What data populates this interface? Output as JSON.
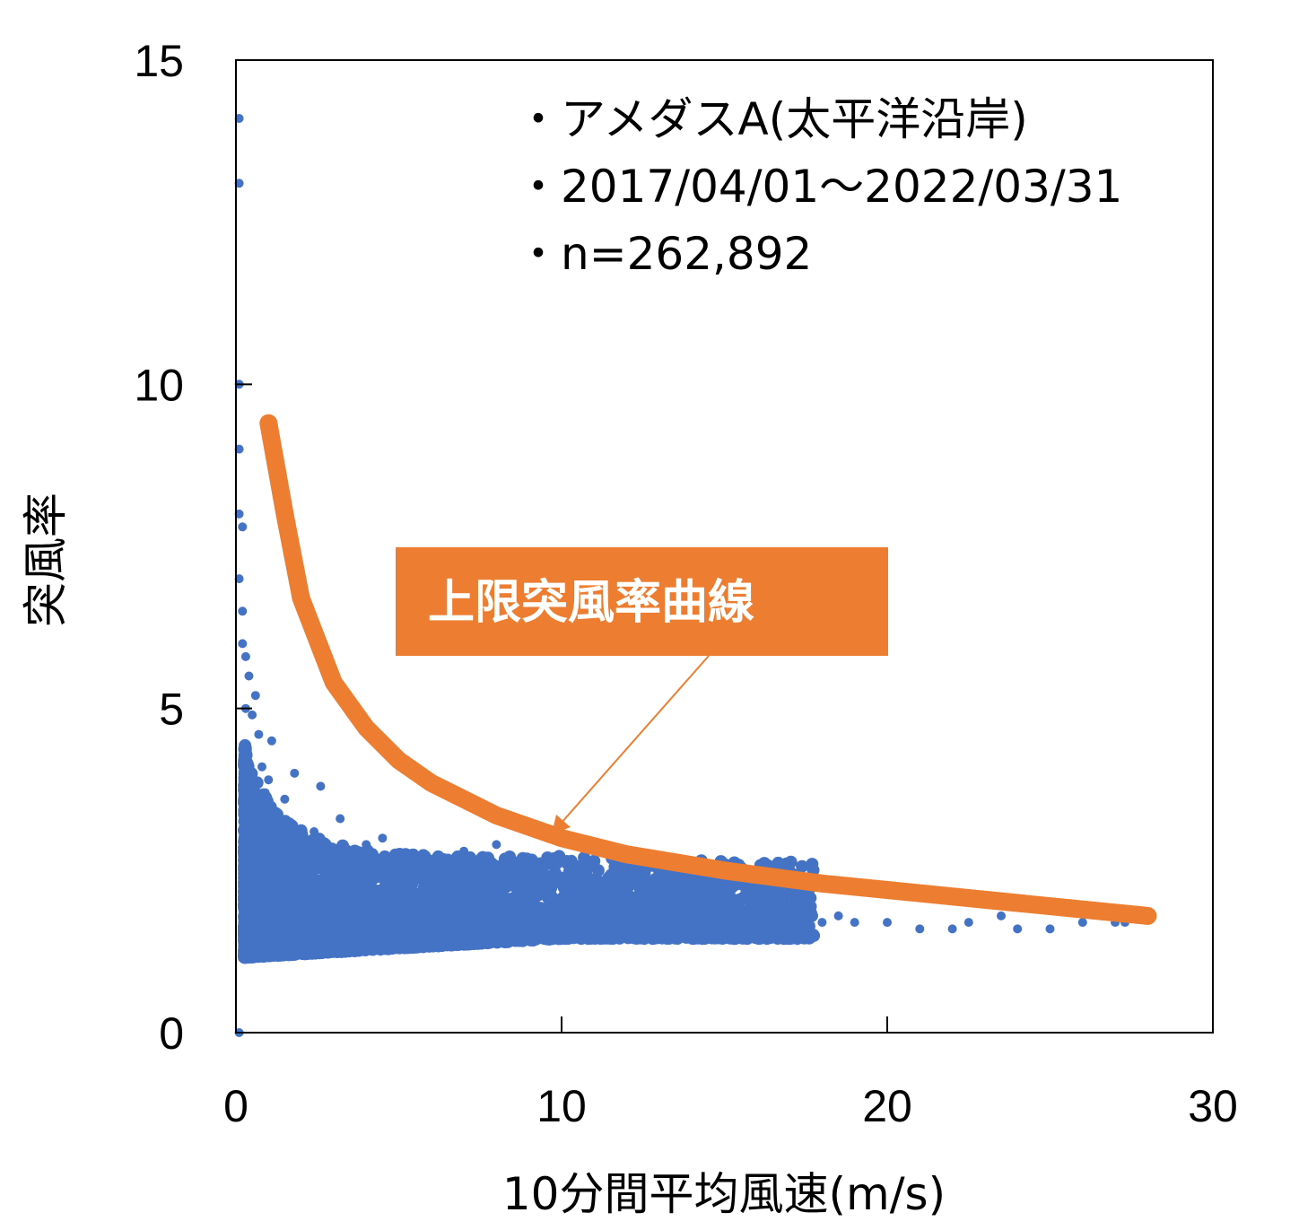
{
  "chart_data": {
    "type": "scatter",
    "xlabel": "10分間平均風速(m/s)",
    "ylabel": "突風率",
    "xlim": [
      0,
      30
    ],
    "ylim": [
      0,
      15
    ],
    "x_ticks": [
      "0",
      "10",
      "20",
      "30"
    ],
    "y_ticks": [
      "0",
      "5",
      "10",
      "15"
    ],
    "x_tick_values": [
      0,
      10,
      20,
      30
    ],
    "y_tick_values": [
      0,
      5,
      10,
      15
    ],
    "grid": false,
    "annotations": [
      "・アメダスA(太平洋沿岸)",
      "・2017/04/01〜2022/03/31",
      "・n=262,892"
    ],
    "callout": "上限突風率曲線",
    "colors": {
      "points": "#4472C4",
      "curve": "#ED7D31",
      "callout_bg": "#ED7D31",
      "callout_text": "#ffffff"
    },
    "series": [
      {
        "type": "scatter",
        "x": [
          0.1,
          0.1,
          0.1,
          0.1,
          0.1,
          0.1,
          0.1,
          0.2,
          0.2,
          0.2,
          0.3,
          0.3,
          0.3,
          0.4,
          0.5,
          0.5,
          0.6,
          0.7,
          0.8,
          0.9,
          1.0,
          1.0,
          1.1,
          1.2,
          1.3,
          1.4,
          1.5,
          1.5,
          1.6,
          1.7,
          1.8,
          2.0,
          2.1,
          2.2,
          2.4,
          2.5,
          2.6,
          2.8,
          3.0,
          3.1,
          3.2,
          3.4,
          3.5,
          3.8,
          4.0,
          4.2,
          4.5,
          4.8,
          5.0,
          5.3,
          5.5,
          6.0,
          6.2,
          6.5,
          7.0,
          7.5,
          8.0,
          8.5,
          9.0,
          9.5,
          10.0,
          10.5,
          11.0,
          11.5,
          12.0,
          12.5,
          13.0,
          13.5,
          14.0,
          14.5,
          15.0,
          15.5,
          16.0,
          16.5,
          17.0,
          17.5,
          18.0,
          18.5,
          19.0,
          20.0,
          21.0,
          22.0,
          22.5,
          23.5,
          24.0,
          25.0,
          26.0,
          26.0,
          27.0,
          27.3
        ],
        "y": [
          14.1,
          13.1,
          10.0,
          9.0,
          8.0,
          7.0,
          0.0,
          7.8,
          6.5,
          6.0,
          5.8,
          5.0,
          4.0,
          5.5,
          4.9,
          3.2,
          5.2,
          4.6,
          4.1,
          3.7,
          3.9,
          2.6,
          4.5,
          3.4,
          3.0,
          2.2,
          3.6,
          1.4,
          2.8,
          3.2,
          4.0,
          2.5,
          3.0,
          2.3,
          3.1,
          2.0,
          3.8,
          2.6,
          2.8,
          1.8,
          3.3,
          2.4,
          2.2,
          2.7,
          2.9,
          2.1,
          3.0,
          2.5,
          2.7,
          1.9,
          2.4,
          2.3,
          2.6,
          2.0,
          2.8,
          2.3,
          2.9,
          2.1,
          2.5,
          1.8,
          2.3,
          1.7,
          2.1,
          1.9,
          2.0,
          1.7,
          1.9,
          1.8,
          1.9,
          1.6,
          2.0,
          1.8,
          1.7,
          1.9,
          1.8,
          2.1,
          1.7,
          1.8,
          1.7,
          1.7,
          1.6,
          1.6,
          1.7,
          1.8,
          1.6,
          1.6,
          1.9,
          1.7,
          1.7,
          1.7
        ]
      },
      {
        "type": "line",
        "name": "上限突風率曲線",
        "x": [
          1.0,
          1.5,
          2.0,
          3.0,
          4.0,
          5.0,
          6.0,
          8.0,
          10.0,
          12.0,
          15.0,
          18.0,
          20.0,
          24.0,
          28.0
        ],
        "y": [
          9.4,
          8.0,
          6.7,
          5.4,
          4.7,
          4.2,
          3.85,
          3.35,
          3.0,
          2.75,
          2.5,
          2.3,
          2.2,
          2.0,
          1.8
        ]
      }
    ]
  }
}
